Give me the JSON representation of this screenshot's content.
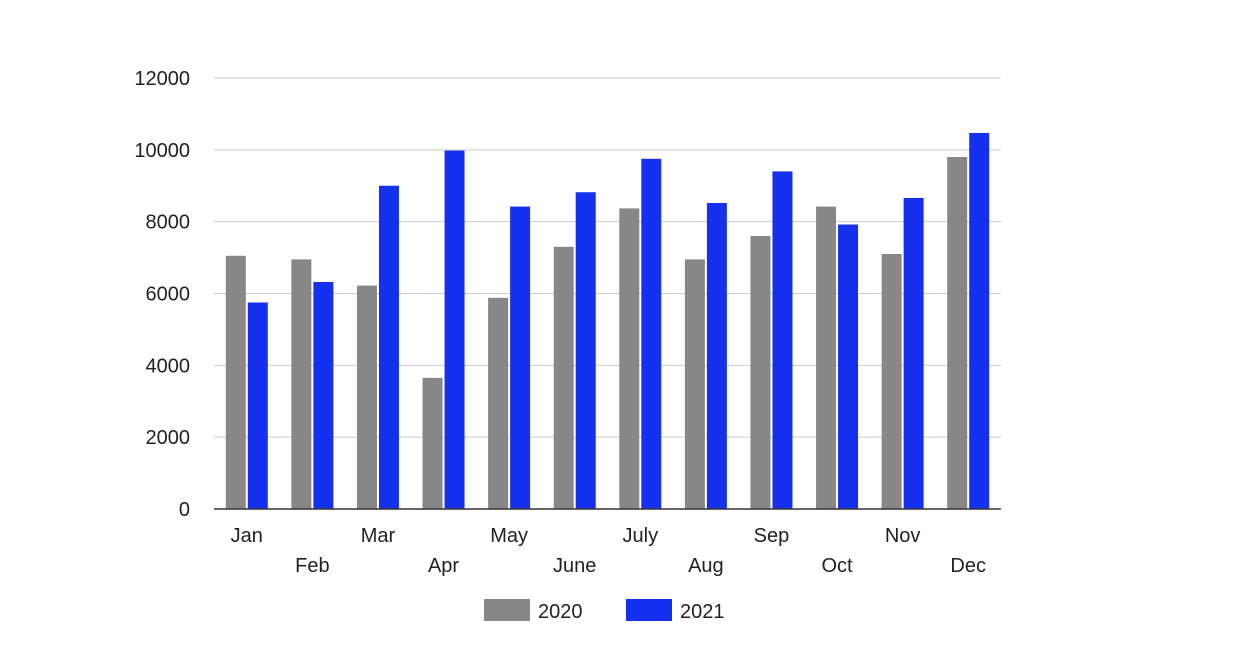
{
  "chart_data": {
    "type": "bar",
    "categories": [
      "Jan",
      "Feb",
      "Mar",
      "Apr",
      "May",
      "June",
      "July",
      "Aug",
      "Sep",
      "Oct",
      "Nov",
      "Dec"
    ],
    "series": [
      {
        "name": "2020",
        "color": "#878787",
        "values": [
          7050,
          6950,
          6220,
          3650,
          5880,
          7300,
          8370,
          6950,
          7600,
          8420,
          7100,
          9800
        ]
      },
      {
        "name": "2021",
        "color": "#1631ee",
        "values": [
          5750,
          6320,
          9000,
          9980,
          8420,
          8820,
          9750,
          8520,
          9400,
          7920,
          8660,
          10470
        ]
      }
    ],
    "ylim": [
      0,
      12000
    ],
    "y_ticks": [
      "0",
      "2000",
      "4000",
      "6000",
      "8000",
      "10000",
      "12000"
    ],
    "grid": true,
    "legend_position": "bottom",
    "title": "",
    "xlabel": "",
    "ylabel": ""
  }
}
